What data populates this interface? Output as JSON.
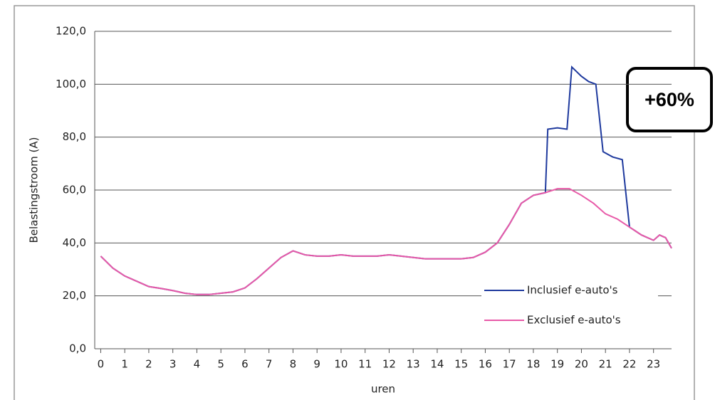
{
  "chart_data": {
    "type": "line",
    "ylabel": "Belastingstroom (A)",
    "xlabel": "uren",
    "annotation": "+60%",
    "xlim": [
      -0.25,
      23.75
    ],
    "ylim": [
      0,
      120
    ],
    "xticks": [
      0,
      1,
      2,
      3,
      4,
      5,
      6,
      7,
      8,
      9,
      10,
      11,
      12,
      13,
      14,
      15,
      16,
      17,
      18,
      19,
      20,
      21,
      22,
      23
    ],
    "yticks": [
      {
        "value": 0,
        "label": "0,0"
      },
      {
        "value": 20,
        "label": "20,0"
      },
      {
        "value": 40,
        "label": "40,0"
      },
      {
        "value": 60,
        "label": "60,0"
      },
      {
        "value": 80,
        "label": "80,0"
      },
      {
        "value": 100,
        "label": "100,0"
      },
      {
        "value": 120,
        "label": "120,0"
      }
    ],
    "grid": true,
    "legend": "lower right",
    "series": [
      {
        "name": "Inclusief e-auto's",
        "color": "#1f3a9e",
        "x": [
          0,
          0.5,
          1,
          1.5,
          2,
          2.5,
          3,
          3.5,
          4,
          4.5,
          5,
          5.5,
          6,
          6.5,
          7,
          7.5,
          8,
          8.5,
          9,
          9.5,
          10,
          10.5,
          11,
          11.5,
          12,
          12.5,
          13,
          13.5,
          14,
          14.5,
          15,
          15.5,
          16,
          16.5,
          17,
          17.5,
          18,
          18.5,
          18.6,
          19,
          19.4,
          19.6,
          20,
          20.3,
          20.6,
          20.9,
          21.3,
          21.7,
          22,
          22.5,
          23,
          23.25,
          23.5,
          23.75
        ],
        "values": [
          35,
          30.5,
          27.5,
          25.5,
          23.5,
          22.8,
          22,
          21,
          20.5,
          20.5,
          21,
          21.5,
          23,
          26.5,
          30.5,
          34.5,
          37,
          35.5,
          35,
          35,
          35.5,
          35,
          35,
          35,
          35.5,
          35,
          34.5,
          34,
          34,
          34,
          34,
          34.5,
          36.5,
          40,
          47,
          55,
          58,
          59,
          83,
          83.5,
          83,
          106.5,
          103,
          101,
          100,
          74.5,
          72.5,
          71.5,
          46,
          43,
          41,
          43,
          42,
          38
        ]
      },
      {
        "name": "Exclusief e-auto's",
        "color": "#e85aa8",
        "x": [
          0,
          0.5,
          1,
          1.5,
          2,
          2.5,
          3,
          3.5,
          4,
          4.5,
          5,
          5.5,
          6,
          6.5,
          7,
          7.5,
          8,
          8.5,
          9,
          9.5,
          10,
          10.5,
          11,
          11.5,
          12,
          12.5,
          13,
          13.5,
          14,
          14.5,
          15,
          15.5,
          16,
          16.5,
          17,
          17.5,
          18,
          18.5,
          19,
          19.5,
          20,
          20.5,
          21,
          21.5,
          22,
          22.5,
          23,
          23.25,
          23.5,
          23.75
        ],
        "values": [
          35,
          30.5,
          27.5,
          25.5,
          23.5,
          22.8,
          22,
          21,
          20.5,
          20.5,
          21,
          21.5,
          23,
          26.5,
          30.5,
          34.5,
          37,
          35.5,
          35,
          35,
          35.5,
          35,
          35,
          35,
          35.5,
          35,
          34.5,
          34,
          34,
          34,
          34,
          34.5,
          36.5,
          40,
          47,
          55,
          58,
          59,
          60.5,
          60.5,
          58,
          55,
          51,
          49,
          46,
          43,
          41,
          43,
          42,
          38
        ]
      }
    ]
  }
}
